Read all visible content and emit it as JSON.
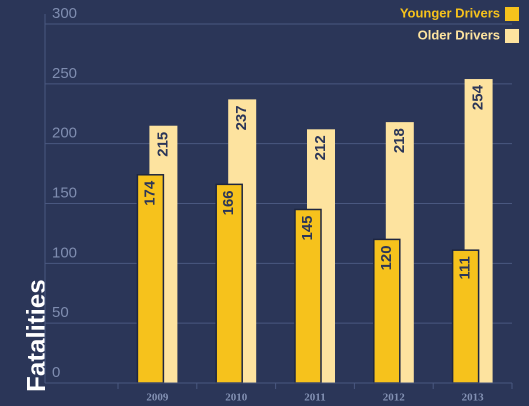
{
  "chart_data": {
    "type": "bar",
    "y_label": "Fatalities",
    "categories": [
      "2009",
      "2010",
      "2011",
      "2012",
      "2013"
    ],
    "series": [
      {
        "name": "Younger Drivers",
        "color": "#f6c21c",
        "values": [
          174,
          166,
          145,
          120,
          111
        ]
      },
      {
        "name": "Older Drivers",
        "color": "#fde39f",
        "values": [
          215,
          237,
          212,
          218,
          254
        ]
      }
    ],
    "ylim": [
      0,
      300
    ],
    "yticks": [
      0,
      50,
      100,
      150,
      200,
      250,
      300
    ],
    "grid": true,
    "legend": "upper right"
  }
}
